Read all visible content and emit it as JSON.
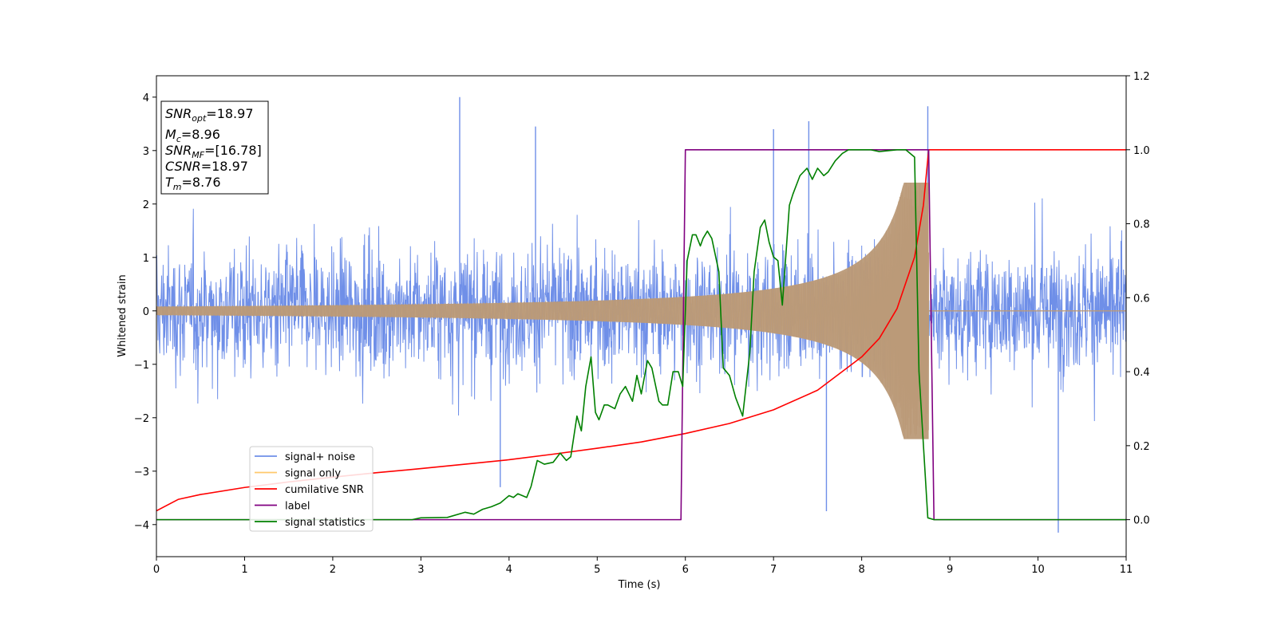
{
  "chart_data": {
    "type": "line",
    "xlabel": "Time (s)",
    "ylabel": "Whitened strain",
    "xlim": [
      0,
      11
    ],
    "ylim": [
      -4.6,
      4.4
    ],
    "y2lim": [
      -0.1,
      1.2
    ],
    "xticks": [
      "0",
      "1",
      "2",
      "3",
      "4",
      "5",
      "6",
      "7",
      "8",
      "9",
      "10",
      "11"
    ],
    "yticks": [
      "−4",
      "−3",
      "−2",
      "−1",
      "0",
      "1",
      "2",
      "3",
      "4"
    ],
    "y2ticks": [
      "0.0",
      "0.2",
      "0.4",
      "0.6",
      "0.8",
      "1.0",
      "1.2"
    ],
    "grid": false,
    "legend_position": "lower-left",
    "colors": {
      "signal_noise": "#6f8fe8",
      "signal_only": "#ffc96b",
      "overlap": "#bb9a78",
      "cumulative_snr": "#ff0000",
      "label": "#800080",
      "statistics": "#008000"
    },
    "annotation": {
      "snr_opt": {
        "symbol": "SNR",
        "sub": "opt",
        "value": "=18.97"
      },
      "mc": {
        "symbol": "M",
        "sub": "c",
        "value": "=8.96"
      },
      "snr_mf": {
        "symbol": "SNR",
        "sub": "MF",
        "value": "=[16.78]"
      },
      "csnr": {
        "symbol": "CSNR",
        "value": "=18.97"
      },
      "tm": {
        "symbol": "T",
        "sub": "m",
        "value": "=8.76"
      }
    },
    "series": [
      {
        "name": "signal+ noise",
        "axis": "left",
        "description_values": "noise band roughly between -2 and 2, peaks up to 4.0, minimum -4.15",
        "spikes": [
          [
            3.44,
            4.0
          ],
          [
            3.9,
            -3.3
          ],
          [
            4.3,
            3.45
          ],
          [
            7.6,
            -3.75
          ],
          [
            8.75,
            3.83
          ],
          [
            10.23,
            -4.15
          ],
          [
            7.0,
            3.4
          ],
          [
            7.4,
            3.55
          ]
        ]
      },
      {
        "name": "signal only",
        "axis": "left",
        "chirp": {
          "start": 0,
          "end": 8.76,
          "amp_start": 0.08,
          "amp_end": 2.4
        }
      },
      {
        "name": "cumilative SNR",
        "axis": "right",
        "x": [
          0,
          0.25,
          0.5,
          1,
          1.5,
          2,
          2.5,
          3,
          3.5,
          4,
          4.5,
          5,
          5.5,
          6,
          6.5,
          7,
          7.5,
          8,
          8.2,
          8.4,
          8.6,
          8.7,
          8.76,
          11
        ],
        "y": [
          0.024,
          0.055,
          0.068,
          0.087,
          0.102,
          0.115,
          0.127,
          0.138,
          0.15,
          0.162,
          0.177,
          0.193,
          0.21,
          0.233,
          0.26,
          0.297,
          0.35,
          0.44,
          0.49,
          0.57,
          0.71,
          0.85,
          1.0,
          1.0
        ]
      },
      {
        "name": "label",
        "axis": "right",
        "x": [
          0,
          5.95,
          6.0,
          8.76,
          8.82,
          11
        ],
        "y": [
          0.0,
          0.0,
          1.0,
          1.0,
          0.0,
          0.0
        ]
      },
      {
        "name": "signal statistics",
        "axis": "right",
        "x": [
          0,
          2.5,
          2.9,
          3.0,
          3.3,
          3.5,
          3.6,
          3.7,
          3.8,
          3.9,
          4.0,
          4.05,
          4.1,
          4.2,
          4.25,
          4.32,
          4.4,
          4.5,
          4.58,
          4.65,
          4.7,
          4.77,
          4.82,
          4.87,
          4.93,
          4.98,
          5.02,
          5.08,
          5.12,
          5.2,
          5.26,
          5.32,
          5.4,
          5.45,
          5.5,
          5.57,
          5.62,
          5.7,
          5.74,
          5.8,
          5.86,
          5.92,
          5.97,
          6.02,
          6.08,
          6.12,
          6.17,
          6.2,
          6.25,
          6.3,
          6.38,
          6.43,
          6.5,
          6.57,
          6.65,
          6.73,
          6.78,
          6.85,
          6.9,
          6.95,
          7.0,
          7.05,
          7.1,
          7.18,
          7.22,
          7.3,
          7.38,
          7.44,
          7.5,
          7.57,
          7.62,
          7.7,
          7.78,
          7.85,
          8.0,
          8.1,
          8.2,
          8.4,
          8.5,
          8.6,
          8.65,
          8.75,
          8.82,
          9.0,
          11
        ],
        "y": [
          0.0,
          0.0,
          0.0,
          0.005,
          0.006,
          0.02,
          0.015,
          0.028,
          0.035,
          0.045,
          0.065,
          0.06,
          0.07,
          0.06,
          0.09,
          0.16,
          0.15,
          0.155,
          0.18,
          0.16,
          0.17,
          0.28,
          0.24,
          0.36,
          0.44,
          0.29,
          0.27,
          0.31,
          0.31,
          0.3,
          0.34,
          0.36,
          0.32,
          0.39,
          0.34,
          0.43,
          0.41,
          0.32,
          0.31,
          0.31,
          0.4,
          0.4,
          0.36,
          0.7,
          0.77,
          0.77,
          0.74,
          0.76,
          0.78,
          0.76,
          0.67,
          0.41,
          0.39,
          0.33,
          0.28,
          0.45,
          0.67,
          0.79,
          0.81,
          0.75,
          0.71,
          0.7,
          0.58,
          0.85,
          0.88,
          0.93,
          0.95,
          0.92,
          0.95,
          0.93,
          0.94,
          0.97,
          0.99,
          1.0,
          1.0,
          1.0,
          0.995,
          1.0,
          1.0,
          0.98,
          0.4,
          0.005,
          0.0,
          0.0,
          0.0
        ]
      }
    ],
    "legend": [
      "signal+ noise",
      "signal only",
      "cumilative SNR",
      "label",
      "signal statistics"
    ]
  }
}
